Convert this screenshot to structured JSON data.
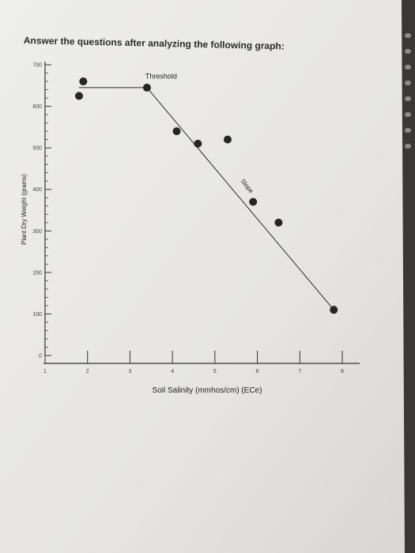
{
  "page": {
    "heading": "Answer the questions after analyzing the following graph:"
  },
  "chart_data": {
    "type": "scatter",
    "title": "",
    "xlabel": "Soil Salinity (mmhos/cm) (ECe)",
    "ylabel": "Plant Dry Weight (grams)",
    "xlim": [
      1,
      8
    ],
    "ylim": [
      0,
      700
    ],
    "x_ticks": [
      1,
      2,
      3,
      4,
      5,
      6,
      7,
      8
    ],
    "y_ticks": [
      0,
      100,
      200,
      300,
      400,
      500,
      600,
      700
    ],
    "points": [
      {
        "x": 1.8,
        "y": 625
      },
      {
        "x": 1.9,
        "y": 660
      },
      {
        "x": 3.4,
        "y": 645
      },
      {
        "x": 4.1,
        "y": 540
      },
      {
        "x": 4.6,
        "y": 510
      },
      {
        "x": 5.3,
        "y": 520
      },
      {
        "x": 5.9,
        "y": 370
      },
      {
        "x": 6.5,
        "y": 320
      },
      {
        "x": 7.8,
        "y": 110
      }
    ],
    "fit_line": [
      {
        "x": 1.8,
        "y": 645
      },
      {
        "x": 3.4,
        "y": 645
      },
      {
        "x": 7.8,
        "y": 110
      }
    ],
    "annotations": [
      {
        "text": "Threshold",
        "x": 3.4,
        "y": 650
      },
      {
        "text": "Slope",
        "x": 5.6,
        "y": 420
      }
    ],
    "grid": false
  }
}
